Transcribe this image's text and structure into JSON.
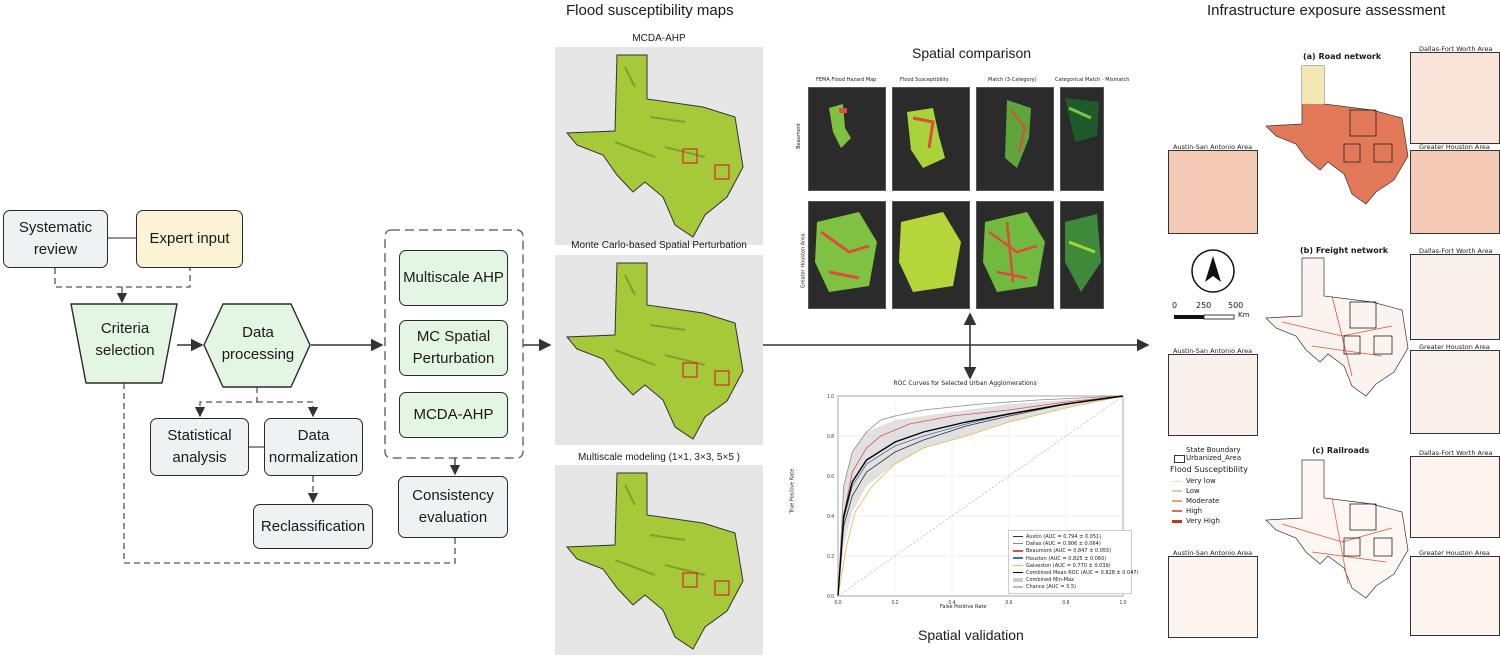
{
  "workflow": {
    "systematic_review": "Systematic review",
    "expert_input": "Expert input",
    "criteria_selection": "Criteria selection",
    "data_processing": "Data processing",
    "statistical_analysis": "Statistical analysis",
    "data_normalization": "Data normalization",
    "reclassification": "Reclassification",
    "multiscale_ahp": "Multiscale AHP",
    "mc_spatial_perturbation": "MC Spatial Perturbation",
    "mcda_ahp": "MCDA-AHP",
    "consistency_evaluation": "Consistency evaluation"
  },
  "susceptibility": {
    "section_title": "Flood susceptibility maps",
    "map1_title": "MCDA-AHP",
    "map2_title": "Monte Carlo-based Spatial Perturbation",
    "map3_title": "Multiscale modeling (1×1, 3×3, 5×5 )"
  },
  "comparison": {
    "title": "Spatial comparison",
    "panel_titles": [
      "FEMA Flood Hazard Map",
      "Flood Susceptibility",
      "Match (3-Category)",
      "Categorical Match - Mismatch"
    ],
    "row_labels": [
      "Beaumont",
      "Greater Houston Area"
    ]
  },
  "validation": {
    "title": "Spatial validation",
    "chart_title": "ROC Curves for Selected Urban Agglomerations",
    "xlabel": "False Positive Rate",
    "ylabel": "True Positive Rate",
    "legend": [
      "Austin (AUC = 0.794 ± 0.051)",
      "Dallas (AUC = 0.906 ± 0.064)",
      "Beaumont (AUC = 0.847 ± 0.055)",
      "Houston (AUC = 0.825 ± 0.060)",
      "Galveston (AUC = 0.770 ± 0.039)",
      "Combined Mean ROC (AUC = 0.828 ± 0.047)",
      "Combined Min-Max",
      "Chance (AUC = 0.5)"
    ],
    "colors": {
      "austin": "#333333",
      "dallas": "#8a8a8a",
      "beaumont": "#d9534f",
      "houston": "#4a6fa5",
      "galveston": "#e8b84a",
      "combined": "#000000",
      "chance": "#bbbbbb"
    }
  },
  "chart_data": {
    "type": "line",
    "title": "ROC Curves for Selected Urban Agglomerations",
    "xlabel": "False Positive Rate",
    "ylabel": "True Positive Rate",
    "xlim": [
      0,
      1
    ],
    "ylim": [
      0,
      1
    ],
    "xticks": [
      "0.0",
      "0.2",
      "0.4",
      "0.6",
      "0.8",
      "1.0"
    ],
    "yticks": [
      "0.0",
      "0.2",
      "0.4",
      "0.6",
      "0.8",
      "1.0"
    ],
    "legend_position": "bottom-right",
    "series": [
      {
        "name": "Austin (AUC = 0.794 ± 0.051)",
        "x": [
          0,
          0.02,
          0.05,
          0.1,
          0.2,
          0.3,
          0.45,
          0.6,
          0.8,
          1
        ],
        "y": [
          0,
          0.35,
          0.5,
          0.62,
          0.72,
          0.78,
          0.85,
          0.9,
          0.96,
          1
        ]
      },
      {
        "name": "Dallas (AUC = 0.906 ± 0.064)",
        "x": [
          0,
          0.02,
          0.05,
          0.1,
          0.15,
          0.2,
          0.3,
          0.5,
          0.7,
          1
        ],
        "y": [
          0,
          0.55,
          0.72,
          0.82,
          0.88,
          0.9,
          0.93,
          0.96,
          0.98,
          1
        ]
      },
      {
        "name": "Beaumont (AUC = 0.847 ± 0.055)",
        "x": [
          0,
          0.02,
          0.05,
          0.1,
          0.15,
          0.25,
          0.4,
          0.6,
          0.8,
          1
        ],
        "y": [
          0,
          0.4,
          0.62,
          0.74,
          0.8,
          0.86,
          0.9,
          0.93,
          0.97,
          1
        ]
      },
      {
        "name": "Houston (AUC = 0.825 ± 0.060)",
        "x": [
          0,
          0.02,
          0.05,
          0.1,
          0.2,
          0.3,
          0.45,
          0.6,
          0.8,
          1
        ],
        "y": [
          0,
          0.38,
          0.55,
          0.66,
          0.75,
          0.8,
          0.86,
          0.91,
          0.96,
          1
        ]
      },
      {
        "name": "Galveston (AUC = 0.770 ± 0.039)",
        "x": [
          0,
          0.03,
          0.06,
          0.12,
          0.2,
          0.3,
          0.45,
          0.6,
          0.8,
          1
        ],
        "y": [
          0,
          0.25,
          0.42,
          0.55,
          0.66,
          0.74,
          0.8,
          0.87,
          0.94,
          1
        ]
      },
      {
        "name": "Combined Mean ROC (AUC = 0.828 ± 0.047)",
        "x": [
          0,
          0.02,
          0.05,
          0.1,
          0.2,
          0.3,
          0.45,
          0.6,
          0.8,
          1
        ],
        "y": [
          0,
          0.4,
          0.57,
          0.68,
          0.77,
          0.82,
          0.87,
          0.91,
          0.96,
          1
        ]
      },
      {
        "name": "Chance (AUC = 0.5)",
        "x": [
          0,
          1
        ],
        "y": [
          0,
          1
        ]
      }
    ]
  },
  "exposure": {
    "section_title": "Infrastructure exposure assessment",
    "road_title": "(a) Road network",
    "freight_title": "(b) Freight network",
    "rail_title": "(c) Railroads",
    "dfw": "Dallas-Fort Worth Area",
    "houston": "Greater Houston Area",
    "austin": "Austin-San Antonio Area",
    "scale_labels": [
      "0",
      "250",
      "500"
    ],
    "scale_unit": "Km",
    "legend": {
      "state_boundary": "State Boundary",
      "urbanized_area": "Urbanized_Area",
      "title": "Flood Susceptibility",
      "classes": [
        "Very low",
        "Low",
        "Moderate",
        "High",
        "Very High"
      ],
      "class_colors": [
        "#f5d9cc",
        "#f2bfa8",
        "#ec9e7e",
        "#e36c48",
        "#c8321b"
      ]
    }
  }
}
